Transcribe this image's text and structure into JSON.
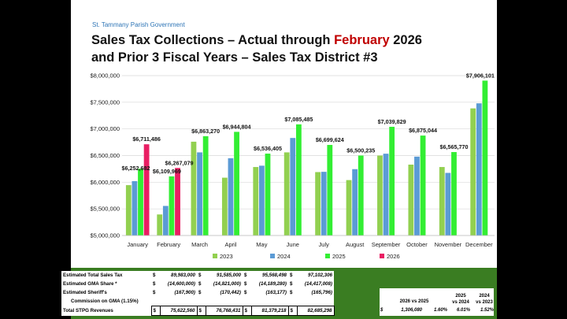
{
  "header": {
    "org": "St. Tammany Parish Government",
    "title_line1_a": "Sales Tax Collections – Actual through ",
    "title_line1_highlight": "February",
    "title_line1_b": " 2026",
    "title_line2": "and Prior 3 Fiscal Years – Sales Tax District #3"
  },
  "chart_data": {
    "type": "bar",
    "categories": [
      "January",
      "February",
      "March",
      "April",
      "May",
      "June",
      "July",
      "August",
      "September",
      "October",
      "November",
      "December"
    ],
    "series": [
      {
        "name": "2023",
        "color": "#92d050",
        "values": [
          5945000,
          5395000,
          6760000,
          6085000,
          6285000,
          6560000,
          6190000,
          6040000,
          6500000,
          6330000,
          6285000,
          7385000
        ]
      },
      {
        "name": "2024",
        "color": "#5b9bd5",
        "values": [
          6020000,
          5555000,
          6560000,
          6450000,
          6310000,
          6830000,
          6195000,
          6245000,
          6535000,
          6480000,
          6175000,
          7480000
        ]
      },
      {
        "name": "2025",
        "color": "#33ee33",
        "values": [
          6252682,
          6109969,
          6863270,
          6944804,
          6536405,
          7085485,
          6699624,
          6500235,
          7039829,
          6875044,
          6565770,
          7906101
        ]
      },
      {
        "name": "2026",
        "color": "#e91e63",
        "values": [
          6711486,
          6267079,
          null,
          null,
          null,
          null,
          null,
          null,
          null,
          null,
          null,
          null
        ]
      }
    ],
    "labels": [
      {
        "cat": 0,
        "series": 2,
        "text": "$6,252,682"
      },
      {
        "cat": 0,
        "series": 3,
        "text": "$6,711,486"
      },
      {
        "cat": 1,
        "series": 2,
        "text": "$6,109,969"
      },
      {
        "cat": 1,
        "series": 3,
        "text": "$6,267,079"
      },
      {
        "cat": 2,
        "series": 2,
        "text": "$6,863,270"
      },
      {
        "cat": 3,
        "series": 2,
        "text": "$6,944,804"
      },
      {
        "cat": 4,
        "series": 2,
        "text": "$6,536,405"
      },
      {
        "cat": 5,
        "series": 2,
        "text": "$7,085,485"
      },
      {
        "cat": 6,
        "series": 2,
        "text": "$6,699,624"
      },
      {
        "cat": 7,
        "series": 2,
        "text": "$6,500,235"
      },
      {
        "cat": 8,
        "series": 2,
        "text": "$7,039,829"
      },
      {
        "cat": 9,
        "series": 2,
        "text": "$6,875,044"
      },
      {
        "cat": 10,
        "series": 2,
        "text": "$6,565,770"
      },
      {
        "cat": 11,
        "series": 2,
        "text": "$7,906,101"
      }
    ],
    "ylim": [
      5000000,
      8000000
    ],
    "yticks": [
      {
        "value": 8000000,
        "label": "$8,000,000"
      },
      {
        "value": 7500000,
        "label": "$7,500,000"
      },
      {
        "value": 7000000,
        "label": "$7,000,000"
      },
      {
        "value": 6500000,
        "label": "$6,500,000"
      },
      {
        "value": 6000000,
        "label": "$6,000,000"
      },
      {
        "value": 5500000,
        "label": "$5,500,000"
      },
      {
        "value": 5000000,
        "label": "$5,000,000"
      }
    ],
    "grid": true,
    "legend": "bottom"
  },
  "table": {
    "rows": [
      {
        "label": "Estimated Total Sales Tax",
        "values": [
          "89,983,000",
          "91,585,000",
          "95,568,498",
          "97,102,306"
        ]
      },
      {
        "label": "Estimated GMA Share *",
        "values": [
          "(14,600,000)",
          "(14,821,000)",
          "(14,189,280)",
          "(14,417,008)"
        ]
      },
      {
        "label": "Estimated Sheriff's",
        "values": [
          "(167,900)",
          "(170,442)",
          "(163,177)",
          "(165,796)"
        ]
      },
      {
        "label": "Commission on GMA (1.15%)",
        "values": []
      },
      {
        "label": "Total STPG Revenues",
        "values": [
          "75,622,560",
          "76,768,431",
          "81,379,218",
          "82,685,298"
        ]
      }
    ],
    "currency": "$"
  },
  "comparison": {
    "h1": "2026  vs 2025",
    "h2_top": "2025",
    "h2_bottom": "vs 2024",
    "h3_top": "2024",
    "h3_bottom": "vs 2023",
    "amount": "1,306,080",
    "pct1": "1.60%",
    "pct2": "6.01%",
    "pct3": "1.52%"
  }
}
